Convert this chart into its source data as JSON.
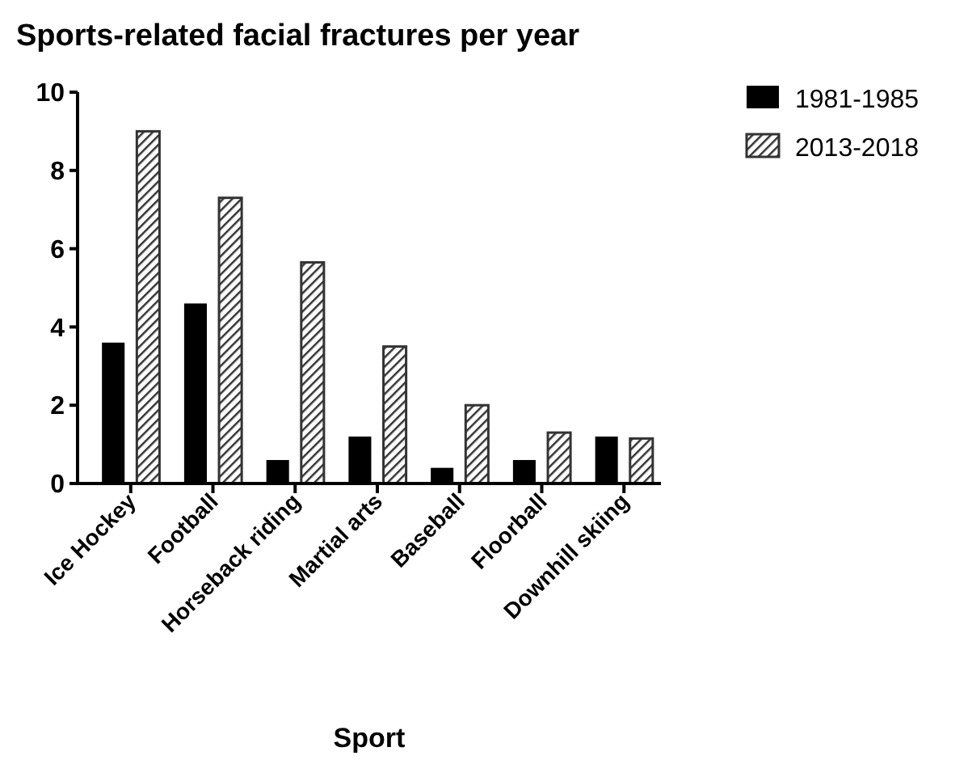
{
  "chart_data": {
    "type": "bar",
    "title": "Sports-related facial fractures per year",
    "xlabel": "Sport",
    "categories": [
      "Ice Hockey",
      "Football",
      "Horseback riding",
      "Martial arts",
      "Baseball",
      "Floorball",
      "Downhill skiing"
    ],
    "series": [
      {
        "name": "1981-1985",
        "color": "#000000",
        "values": [
          3.6,
          4.6,
          0.6,
          1.2,
          0.4,
          0.6,
          1.2
        ]
      },
      {
        "name": "2013-2018",
        "color": "#333333",
        "values": [
          9.0,
          7.3,
          5.65,
          3.5,
          2.0,
          1.3,
          1.15
        ]
      }
    ],
    "ylim": [
      0,
      10
    ],
    "yticks": [
      0,
      2,
      4,
      6,
      8,
      10
    ],
    "grid": false,
    "legend": "top right"
  }
}
